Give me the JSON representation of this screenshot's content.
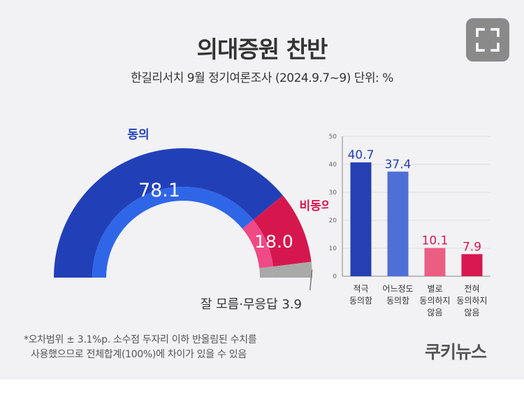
{
  "title": "의대증원 찬반",
  "subtitle": "한길리서치 9월 정기여론조사 (2024.9.7~9) 단위: %",
  "expand_icon": "fullscreen-icon",
  "colors": {
    "agree": "#2140b8",
    "disagree": "#d6174e",
    "unknown": "#a9a9a9",
    "inner_agree": "#2f66e8",
    "inner_disagree": "#ef4a86",
    "bar_strong_agree": "#2440b3",
    "bar_agree": "#4d6fd6",
    "bar_disagree": "#ec5d84",
    "bar_strong_disagree": "#d8174f",
    "grid": "#dddddd",
    "axis": "#888888"
  },
  "chart_data": [
    {
      "type": "pie",
      "variant": "half-donut",
      "slices": [
        {
          "label": "동의",
          "value": 78.1
        },
        {
          "label": "비동의",
          "value": 18.0
        },
        {
          "label": "잘 모름·무응답",
          "value": 3.9
        }
      ]
    },
    {
      "type": "bar",
      "categories": [
        [
          "적극",
          "동의함"
        ],
        [
          "어느정도",
          "동의함"
        ],
        [
          "별로",
          "동의하지",
          "않음"
        ],
        [
          "전혀",
          "동의하지",
          "않음"
        ]
      ],
      "values": [
        40.7,
        37.4,
        10.1,
        7.9
      ],
      "value_labels": [
        "40.7",
        "37.4",
        "10.1",
        "7.9"
      ],
      "ylim": [
        0,
        50
      ],
      "yticks": [
        0,
        10,
        20,
        30,
        40,
        50
      ],
      "grid": true
    }
  ],
  "footnote": {
    "line1": "*오차범위 ± 3.1%p. 소수점 두자리 이하 반올림된 수치를",
    "line2": "사용했으므로 전체합계(100%)에 차이가 있을 수 있음"
  },
  "logo": "쿠키뉴스"
}
